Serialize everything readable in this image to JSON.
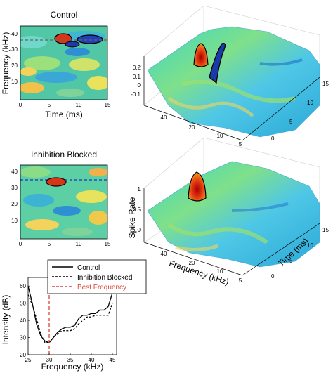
{
  "panels": {
    "control": {
      "title": "Control",
      "xlabel": "Time (ms)",
      "ylabel": "Frequency (kHz)",
      "xticks": [
        "0",
        "5",
        "10",
        "15"
      ],
      "yticks": [
        "40",
        "30",
        "20",
        "10"
      ]
    },
    "inhibition": {
      "title": "Inhibition Blocked",
      "yticks": [
        "40",
        "30",
        "20",
        "10"
      ],
      "xticks": [
        "0",
        "5",
        "10",
        "15"
      ]
    },
    "surface_control": {
      "zticks": [
        "0.2",
        "0.1",
        "0",
        "-0.1"
      ],
      "freq_ticks": [
        "40",
        "20",
        "10",
        "5"
      ],
      "time_ticks": [
        "15",
        "10",
        "5",
        "0"
      ]
    },
    "surface_inhibition": {
      "zlabel": "Spike Rate",
      "zticks": [
        "1",
        "0.5",
        "0"
      ],
      "freq_label": "Frequency (kHz)",
      "time_label": "Time (ms)",
      "freq_ticks": [
        "40",
        "20",
        "10",
        "5"
      ],
      "time_ticks": [
        "15",
        "10",
        "5",
        "0"
      ]
    },
    "tuning": {
      "xlabel": "Frequency (kHz)",
      "ylabel": "Intensity (dB)",
      "xticks": [
        "25",
        "30",
        "35",
        "40",
        "45"
      ],
      "yticks": [
        "60",
        "50",
        "40",
        "30",
        "20"
      ]
    }
  },
  "chart_data": {
    "type": "line",
    "xlabel": "Frequency (kHz)",
    "ylabel": "Intensity (dB)",
    "xlim": [
      25,
      46
    ],
    "ylim": [
      20,
      65
    ],
    "series": [
      {
        "name": "Control",
        "color": "#000000",
        "dash": "solid",
        "x": [
          25,
          26,
          27,
          28,
          29,
          30,
          31,
          32,
          33,
          34,
          35,
          36,
          37,
          38,
          39,
          40,
          41,
          42,
          43,
          44,
          45
        ],
        "y": [
          60,
          50,
          38,
          31,
          28,
          27,
          30,
          33,
          35,
          36,
          36,
          37,
          41,
          43,
          43,
          44,
          44,
          46,
          46,
          48,
          56
        ]
      },
      {
        "name": "Inhibition Blocked",
        "color": "#000000",
        "dash": "dashed",
        "x": [
          25,
          26,
          27,
          28,
          29,
          30,
          31,
          32,
          33,
          34,
          35,
          36,
          37,
          38,
          39,
          40,
          41,
          42,
          43,
          44,
          45
        ],
        "y": [
          55,
          49,
          41,
          32,
          27,
          27,
          30,
          32,
          34,
          34,
          34,
          35,
          38,
          40,
          42,
          42,
          43,
          43,
          43,
          43,
          50
        ]
      },
      {
        "name": "Best Frequency",
        "color": "#d9453b",
        "dash": "dashed",
        "x": [
          30,
          30
        ],
        "y": [
          20,
          65
        ]
      }
    ]
  }
}
